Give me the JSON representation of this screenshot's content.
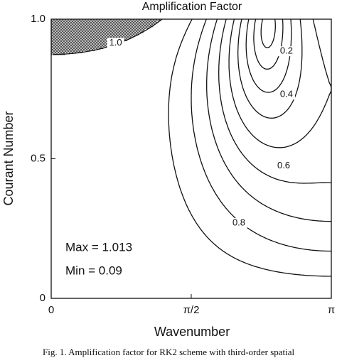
{
  "chart_data": {
    "type": "contour",
    "title": "Amplification Factor",
    "x_label": "Wavenumber",
    "y_label": "Courant Number",
    "xlim": [
      0,
      3.14159
    ],
    "xticks": [
      0,
      {
        "value": 1.5708,
        "label": "π/2"
      },
      {
        "value": 3.14159,
        "label": "π"
      }
    ],
    "ylim": [
      0,
      1
    ],
    "yticks": [
      0,
      0.5,
      {
        "value": 1,
        "label": "1.0"
      }
    ],
    "levels": [
      0.1,
      0.2,
      0.3,
      0.4,
      0.5,
      0.6,
      0.7,
      0.8,
      0.9,
      1.0
    ],
    "level_labels": [
      null,
      "0.2",
      null,
      "0.4",
      null,
      "0.6",
      null,
      "0.8",
      null,
      "1.0"
    ],
    "line_color": "#111111",
    "shade_color": "#555555",
    "annotations": [
      "Max = 1.013",
      "Min  = 0.09"
    ]
  },
  "caption": "Fig. 1. Amplification factor for RK2 scheme with third-order spatial"
}
